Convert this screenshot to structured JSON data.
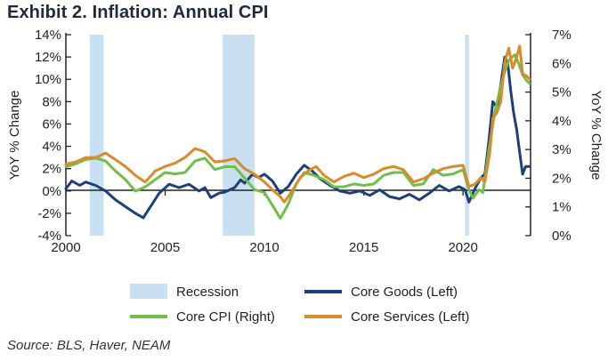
{
  "title": "Exhibit 2. Inflation: Annual CPI",
  "source": "Source: BLS, Haver, NEAM",
  "colors": {
    "recession": "#c9dff2",
    "core_goods": "#1f3f7a",
    "core_cpi": "#6fbf4a",
    "core_services": "#d98a2b",
    "axis": "#222222"
  },
  "chart_data": {
    "type": "line",
    "title": "Exhibit 2. Inflation: Annual CPI",
    "xlim": [
      2000,
      2023.4
    ],
    "x_ticks": [
      2000,
      2005,
      2010,
      2015,
      2020
    ],
    "x_tick_labels": [
      "2000",
      "2005",
      "2010",
      "2015",
      "2020"
    ],
    "left_axis": {
      "label": "YoY % Change",
      "ylim": [
        -4,
        14
      ],
      "ticks": [
        -4,
        -2,
        0,
        2,
        4,
        6,
        8,
        10,
        12,
        14
      ],
      "tick_labels": [
        "-4%",
        "-2%",
        "0%",
        "2%",
        "4%",
        "6%",
        "8%",
        "10%",
        "12%",
        "14%"
      ]
    },
    "right_axis": {
      "label": "YoY % Change",
      "ylim": [
        0,
        7
      ],
      "ticks": [
        0,
        1,
        2,
        3,
        4,
        5,
        6,
        7
      ],
      "tick_labels": [
        "0%",
        "1%",
        "2%",
        "3%",
        "4%",
        "5%",
        "6%",
        "7%"
      ]
    },
    "recessions": [
      {
        "start": 2001.2,
        "end": 2001.9
      },
      {
        "start": 2007.9,
        "end": 2009.5
      },
      {
        "start": 2020.1,
        "end": 2020.3
      }
    ],
    "series": [
      {
        "name": "Core Goods (Left)",
        "axis": "left",
        "key": "core_goods",
        "points": [
          [
            2000.0,
            0.2
          ],
          [
            2000.3,
            0.9
          ],
          [
            2000.7,
            0.5
          ],
          [
            2001.0,
            0.8
          ],
          [
            2001.5,
            0.5
          ],
          [
            2002.0,
            0.0
          ],
          [
            2002.5,
            -0.8
          ],
          [
            2003.0,
            -1.4
          ],
          [
            2003.5,
            -2.0
          ],
          [
            2003.9,
            -2.4
          ],
          [
            2004.3,
            -1.3
          ],
          [
            2004.7,
            -0.2
          ],
          [
            2005.2,
            0.6
          ],
          [
            2005.7,
            0.3
          ],
          [
            2006.2,
            0.6
          ],
          [
            2006.7,
            0.0
          ],
          [
            2007.0,
            0.3
          ],
          [
            2007.3,
            -0.6
          ],
          [
            2007.7,
            -0.2
          ],
          [
            2008.0,
            -0.1
          ],
          [
            2008.5,
            0.3
          ],
          [
            2008.8,
            1.0
          ],
          [
            2009.0,
            0.7
          ],
          [
            2009.4,
            1.5
          ],
          [
            2009.7,
            1.2
          ],
          [
            2010.0,
            1.5
          ],
          [
            2010.4,
            0.9
          ],
          [
            2010.8,
            -0.2
          ],
          [
            2011.2,
            0.4
          ],
          [
            2011.6,
            1.5
          ],
          [
            2012.0,
            2.3
          ],
          [
            2012.4,
            1.8
          ],
          [
            2012.8,
            1.1
          ],
          [
            2013.3,
            0.5
          ],
          [
            2013.8,
            0.0
          ],
          [
            2014.3,
            -0.2
          ],
          [
            2014.8,
            0.0
          ],
          [
            2015.3,
            -0.4
          ],
          [
            2015.8,
            0.1
          ],
          [
            2016.3,
            -0.5
          ],
          [
            2016.8,
            -0.7
          ],
          [
            2017.3,
            -0.3
          ],
          [
            2017.8,
            -0.8
          ],
          [
            2018.3,
            -0.2
          ],
          [
            2018.8,
            0.5
          ],
          [
            2019.3,
            0.0
          ],
          [
            2019.8,
            0.4
          ],
          [
            2020.1,
            0.1
          ],
          [
            2020.3,
            -1.0
          ],
          [
            2020.6,
            0.2
          ],
          [
            2020.9,
            1.2
          ],
          [
            2021.1,
            1.5
          ],
          [
            2021.3,
            4.5
          ],
          [
            2021.5,
            8.0
          ],
          [
            2021.7,
            7.5
          ],
          [
            2021.9,
            9.5
          ],
          [
            2022.1,
            12.0
          ],
          [
            2022.25,
            11.5
          ],
          [
            2022.4,
            9.0
          ],
          [
            2022.55,
            7.0
          ],
          [
            2022.7,
            5.5
          ],
          [
            2022.85,
            3.5
          ],
          [
            2023.0,
            1.5
          ],
          [
            2023.15,
            2.2
          ],
          [
            2023.35,
            2.2
          ]
        ]
      },
      {
        "name": "Core CPI (Right)",
        "axis": "right",
        "key": "core_cpi",
        "points": [
          [
            2000.0,
            2.4
          ],
          [
            2000.5,
            2.5
          ],
          [
            2001.0,
            2.65
          ],
          [
            2001.5,
            2.7
          ],
          [
            2002.0,
            2.6
          ],
          [
            2002.5,
            2.25
          ],
          [
            2003.0,
            1.95
          ],
          [
            2003.5,
            1.55
          ],
          [
            2004.0,
            1.7
          ],
          [
            2004.5,
            1.95
          ],
          [
            2005.0,
            2.2
          ],
          [
            2005.5,
            2.15
          ],
          [
            2006.0,
            2.2
          ],
          [
            2006.5,
            2.6
          ],
          [
            2007.0,
            2.7
          ],
          [
            2007.5,
            2.3
          ],
          [
            2008.0,
            2.4
          ],
          [
            2008.5,
            2.4
          ],
          [
            2009.0,
            2.0
          ],
          [
            2009.5,
            1.6
          ],
          [
            2010.0,
            1.5
          ],
          [
            2010.5,
            0.95
          ],
          [
            2010.8,
            0.6
          ],
          [
            2011.2,
            1.1
          ],
          [
            2011.6,
            1.8
          ],
          [
            2012.0,
            2.2
          ],
          [
            2012.5,
            2.1
          ],
          [
            2013.0,
            1.95
          ],
          [
            2013.5,
            1.7
          ],
          [
            2014.0,
            1.7
          ],
          [
            2014.5,
            1.8
          ],
          [
            2015.0,
            1.75
          ],
          [
            2015.5,
            1.8
          ],
          [
            2016.0,
            2.1
          ],
          [
            2016.5,
            2.2
          ],
          [
            2017.0,
            2.2
          ],
          [
            2017.5,
            1.75
          ],
          [
            2018.0,
            1.8
          ],
          [
            2018.5,
            2.3
          ],
          [
            2019.0,
            2.1
          ],
          [
            2019.5,
            2.15
          ],
          [
            2020.0,
            2.3
          ],
          [
            2020.3,
            1.6
          ],
          [
            2020.5,
            1.3
          ],
          [
            2020.8,
            1.6
          ],
          [
            2021.0,
            1.5
          ],
          [
            2021.3,
            3.0
          ],
          [
            2021.6,
            4.3
          ],
          [
            2022.0,
            5.5
          ],
          [
            2022.3,
            6.1
          ],
          [
            2022.6,
            6.3
          ],
          [
            2022.8,
            6.0
          ],
          [
            2023.0,
            5.6
          ],
          [
            2023.2,
            5.4
          ],
          [
            2023.35,
            5.3
          ]
        ]
      },
      {
        "name": "Core Services (Left)",
        "axis": "left",
        "key": "core_services",
        "points": [
          [
            2000.0,
            2.4
          ],
          [
            2000.5,
            2.6
          ],
          [
            2001.0,
            3.0
          ],
          [
            2001.5,
            3.0
          ],
          [
            2002.0,
            3.4
          ],
          [
            2002.5,
            2.8
          ],
          [
            2003.0,
            2.2
          ],
          [
            2003.5,
            1.4
          ],
          [
            2004.0,
            0.8
          ],
          [
            2004.5,
            1.8
          ],
          [
            2005.0,
            2.2
          ],
          [
            2005.5,
            2.5
          ],
          [
            2006.0,
            3.0
          ],
          [
            2006.5,
            3.8
          ],
          [
            2007.0,
            3.5
          ],
          [
            2007.5,
            2.6
          ],
          [
            2008.0,
            2.7
          ],
          [
            2008.5,
            2.9
          ],
          [
            2009.0,
            2.0
          ],
          [
            2009.5,
            1.5
          ],
          [
            2010.0,
            0.8
          ],
          [
            2010.4,
            0.1
          ],
          [
            2010.8,
            -0.5
          ],
          [
            2011.0,
            -1.0
          ],
          [
            2011.4,
            0.0
          ],
          [
            2011.8,
            1.2
          ],
          [
            2012.2,
            1.8
          ],
          [
            2012.6,
            2.2
          ],
          [
            2013.0,
            1.4
          ],
          [
            2013.5,
            0.8
          ],
          [
            2014.0,
            1.3
          ],
          [
            2014.5,
            1.6
          ],
          [
            2015.0,
            1.2
          ],
          [
            2015.5,
            1.5
          ],
          [
            2016.0,
            2.0
          ],
          [
            2016.5,
            2.2
          ],
          [
            2017.0,
            1.9
          ],
          [
            2017.5,
            0.8
          ],
          [
            2018.0,
            1.1
          ],
          [
            2018.5,
            1.6
          ],
          [
            2019.0,
            2.0
          ],
          [
            2019.5,
            2.2
          ],
          [
            2020.0,
            2.3
          ],
          [
            2020.3,
            0.4
          ],
          [
            2020.6,
            0.6
          ],
          [
            2020.9,
            1.2
          ],
          [
            2021.1,
            0.8
          ],
          [
            2021.35,
            3.5
          ],
          [
            2021.5,
            6.5
          ],
          [
            2021.7,
            7.0
          ],
          [
            2021.9,
            8.0
          ],
          [
            2022.1,
            11.5
          ],
          [
            2022.3,
            12.8
          ],
          [
            2022.5,
            11.0
          ],
          [
            2022.7,
            12.0
          ],
          [
            2022.85,
            13.0
          ],
          [
            2023.0,
            10.5
          ],
          [
            2023.2,
            10.3
          ],
          [
            2023.35,
            10.0
          ]
        ]
      }
    ],
    "legend": [
      {
        "key": "recession",
        "label": "Recession",
        "kind": "box"
      },
      {
        "key": "core_goods",
        "label": "Core Goods (Left)",
        "kind": "line"
      },
      {
        "key": "core_cpi",
        "label": "Core CPI (Right)",
        "kind": "line"
      },
      {
        "key": "core_services",
        "label": "Core Services (Left)",
        "kind": "line"
      }
    ]
  }
}
